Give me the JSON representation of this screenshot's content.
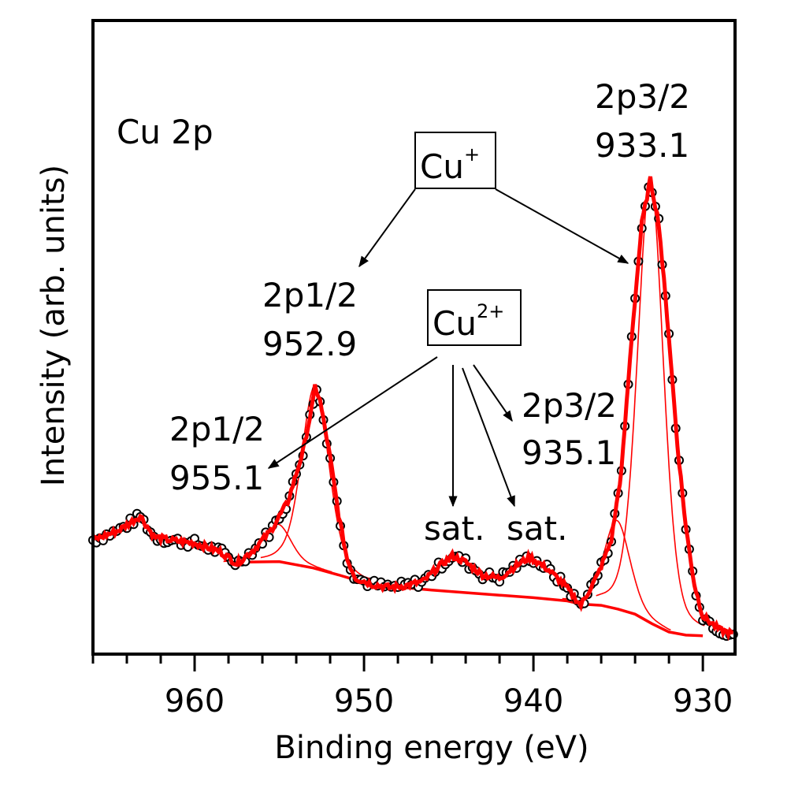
{
  "chart_data": {
    "type": "line",
    "title": "Cu 2p",
    "xlabel": "Binding energy (eV)",
    "ylabel": "Intensity (arb. units)",
    "xlim": [
      966,
      928.1
    ],
    "x_reversed": true,
    "ylim": [
      0,
      100
    ],
    "x_ticks": [
      960,
      950,
      940,
      930
    ],
    "x_tick_labels": [
      "960",
      "950",
      "940",
      "930"
    ],
    "x_minor_step": 2,
    "y_ticks_shown": false,
    "grid": false,
    "legend": "none",
    "colors": {
      "experimental": "#000000",
      "fit": "#ff0000",
      "component": "#ff0000",
      "background": "#ff0000"
    },
    "experimental_anchor_points": {
      "x": [
        966,
        964.5,
        963.2,
        962.4,
        961.5,
        960,
        958.5,
        957.5,
        956.5,
        955.5,
        954.5,
        953.6,
        953.0,
        952.9,
        952.6,
        952.0,
        951.5,
        951.0,
        950.5,
        949.5,
        948.5,
        947.5,
        946.5,
        945.5,
        944.8,
        944.0,
        943.0,
        942.0,
        941.0,
        940.2,
        939.2,
        938.2,
        937.2,
        936.2,
        935.4,
        934.8,
        934.2,
        933.6,
        933.1,
        932.6,
        932.0,
        931.5,
        931.0,
        930.5,
        930.0,
        929.0,
        928.1
      ],
      "y": [
        18.0,
        19.5,
        21.8,
        18.5,
        18.0,
        17.5,
        16.2,
        14.3,
        16.5,
        19.5,
        24.0,
        32.0,
        40.0,
        42.3,
        40.0,
        31.0,
        22.0,
        15.0,
        12.0,
        11.0,
        10.5,
        10.8,
        11.5,
        14.0,
        15.5,
        14.5,
        12.5,
        12.0,
        14.0,
        15.3,
        13.5,
        11.0,
        7.7,
        12.5,
        18.0,
        29.0,
        50.0,
        68.0,
        74.9,
        68.0,
        50.0,
        33.0,
        20.0,
        11.0,
        6.0,
        3.8,
        3.1
      ]
    },
    "fit_components": [
      {
        "name": "Cu+ 2p1/2",
        "center": 952.9,
        "height": 42.3,
        "fwhm": 1.9,
        "label": "2p1/2 952.9"
      },
      {
        "name": "Cu2+ 2p1/2",
        "center": 955.1,
        "height": 20.5,
        "fwhm": 1.8,
        "label": "2p1/2 955.1"
      },
      {
        "name": "Cu+ 2p3/2",
        "center": 933.1,
        "height": 74.9,
        "fwhm": 1.8,
        "label": "2p3/2 933.1"
      },
      {
        "name": "Cu2+ 2p3/2",
        "center": 935.1,
        "height": 21.1,
        "fwhm": 1.8,
        "label": "2p3/2 935.1"
      }
    ],
    "background": {
      "x": [
        957.5,
        955,
        953,
        951.5,
        950,
        948,
        946,
        944,
        942,
        940,
        938,
        937.2,
        936,
        935,
        934,
        933,
        932,
        931,
        930
      ],
      "y": [
        14.5,
        14.6,
        13.6,
        12.5,
        11.3,
        10.6,
        10.1,
        9.7,
        9.3,
        8.9,
        8.4,
        7.9,
        7.7,
        7.1,
        6.3,
        4.8,
        3.5,
        3.0,
        2.9
      ]
    }
  },
  "annotations": {
    "spectrum_label": "Cu 2p",
    "cu_plus_box": {
      "base": "Cu",
      "sup": "+"
    },
    "cu_2plus_box": {
      "base": "Cu",
      "sup": "2+"
    },
    "peak_labels": [
      {
        "line1": "2p3/2",
        "line2": "933.1"
      },
      {
        "line1": "2p1/2",
        "line2": "952.9"
      },
      {
        "line1": "2p1/2",
        "line2": "955.1"
      },
      {
        "line1": "2p3/2",
        "line2": "935.1"
      }
    ],
    "satellite_labels": [
      "sat.",
      "sat."
    ]
  }
}
